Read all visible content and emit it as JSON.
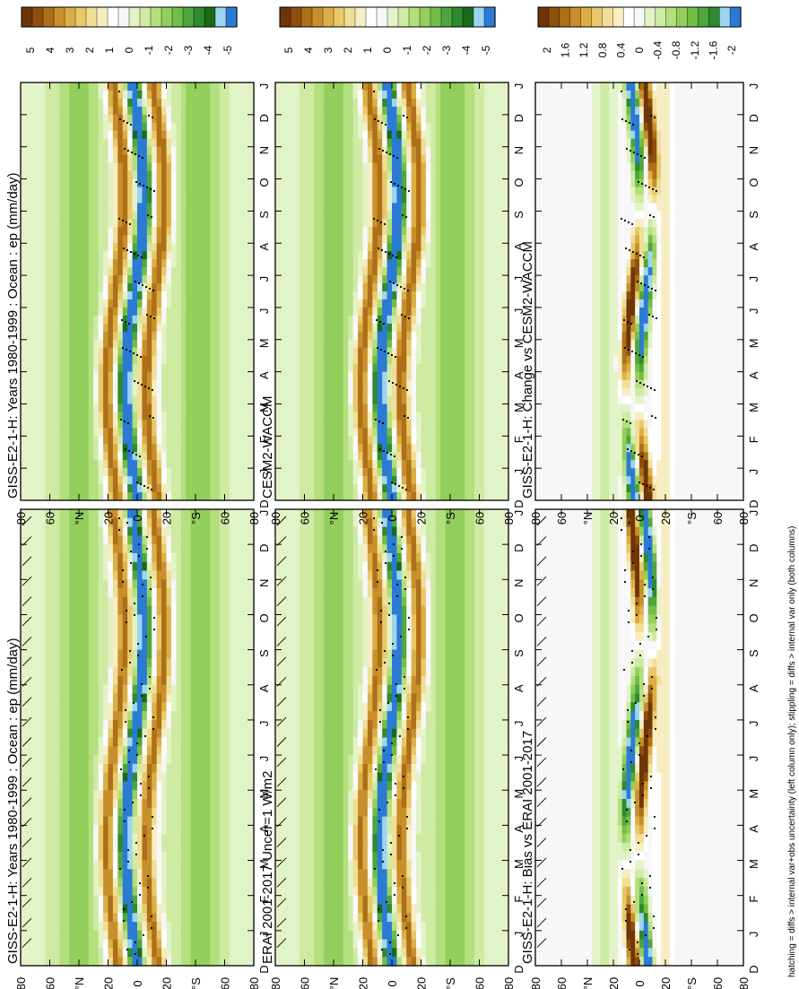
{
  "figure": {
    "footnote": "hatching = diffs > internal var+obs uncertainty (left column only); stippling = diffs > internal var only (both columns)",
    "colors": {
      "full": [
        "#2b7bd4",
        "#9fd4f0",
        "#1a6a1a",
        "#2e8a2e",
        "#4fa63c",
        "#72bd48",
        "#93cf5c",
        "#b4df7e",
        "#cfeaa3",
        "#e3f3c8",
        "#f7f7f7",
        "#ffffff",
        "#f7edc2",
        "#f0de96",
        "#e9c86a",
        "#dcae46",
        "#c8902c",
        "#ad6f18",
        "#8f4f0c",
        "#6e3608"
      ],
      "diff": [
        "#2b7bd4",
        "#9fd4f0",
        "#2e8a2e",
        "#4fa63c",
        "#72bd48",
        "#93cf5c",
        "#b4df7e",
        "#cfeaa3",
        "#e3f3c8",
        "#f7f7f7",
        "#ffffff",
        "#f7edc2",
        "#f0de96",
        "#e9c86a",
        "#dcae46",
        "#c8902c",
        "#ad6f18",
        "#8f4f0c",
        "#6e3608"
      ]
    }
  },
  "chart_data": [
    {
      "id": "p1",
      "type": "heatmap",
      "title": "GISS-E2-1-H: Years 1980-1999 : Ocean : ep (mm/day)",
      "x": [
        "D",
        "J",
        "F",
        "M",
        "A",
        "M",
        "J",
        "J",
        "A",
        "S",
        "O",
        "N",
        "D",
        "J"
      ],
      "y_ticks": [
        "80",
        "60",
        "°N",
        "20",
        "0",
        "20",
        "°S",
        "60",
        "80"
      ],
      "colorbar_labels": [
        "5",
        "4",
        "3",
        "2",
        "1",
        "0",
        "-1",
        "-2",
        "-3",
        "-4",
        "-5"
      ],
      "colorbar_range": [
        -5,
        5
      ],
      "fields": {
        "bias_dry_itcz": false
      },
      "hatching": true,
      "stippling": true
    },
    {
      "id": "p2",
      "type": "heatmap",
      "title": "GISS-E2-1-H: Years 1980-1999 : Ocean : ep (mm/day)",
      "x": [
        "D",
        "J",
        "F",
        "M",
        "A",
        "M",
        "J",
        "J",
        "A",
        "S",
        "O",
        "N",
        "D",
        "J"
      ],
      "y_ticks": [
        "80",
        "60",
        "°N",
        "20",
        "0",
        "20",
        "°S",
        "60",
        "80"
      ],
      "colorbar_labels": [
        "5",
        "4",
        "3",
        "2",
        "1",
        "0",
        "-1",
        "-2",
        "-3",
        "-4",
        "-5"
      ],
      "colorbar_range": [
        -5,
        5
      ],
      "hatching": false,
      "stippling": true
    },
    {
      "id": "p3",
      "type": "heatmap",
      "title": "ERAI 2001-2017 Uncer=1 W/m2",
      "x": [
        "D",
        "J",
        "F",
        "M",
        "A",
        "M",
        "J",
        "J",
        "A",
        "S",
        "O",
        "N",
        "D",
        "J"
      ],
      "y_ticks": [
        "80",
        "60",
        "°N",
        "20",
        "0",
        "20",
        "°S",
        "60",
        "80"
      ],
      "colorbar_labels": [
        "5",
        "4",
        "3",
        "2",
        "1",
        "0",
        "-1",
        "-2",
        "-3",
        "-4",
        "-5"
      ],
      "colorbar_range": [
        -5,
        5
      ],
      "hatching": true,
      "stippling": true
    },
    {
      "id": "p4",
      "type": "heatmap",
      "title": "CESM2-WACCM",
      "x": [
        "D",
        "J",
        "F",
        "M",
        "A",
        "M",
        "J",
        "J",
        "A",
        "S",
        "O",
        "N",
        "D",
        "J"
      ],
      "y_ticks": [
        "80",
        "60",
        "°N",
        "20",
        "0",
        "20",
        "°S",
        "60",
        "80"
      ],
      "colorbar_labels": [
        "5",
        "4",
        "3",
        "2",
        "1",
        "0",
        "-1",
        "-2",
        "-3",
        "-4",
        "-5"
      ],
      "colorbar_range": [
        -5,
        5
      ],
      "hatching": false,
      "stippling": true
    },
    {
      "id": "p5",
      "type": "heatmap",
      "title": "GISS-E2-1-H: Bias vs ERAI 2001-2017",
      "x": [
        "D",
        "J",
        "F",
        "M",
        "A",
        "M",
        "J",
        "J",
        "A",
        "S",
        "O",
        "N",
        "D",
        "J"
      ],
      "y_ticks": [
        "80",
        "60",
        "°N",
        "20",
        "0",
        "20",
        "°S",
        "60",
        "80"
      ],
      "colorbar_labels": [
        "2",
        "1.6",
        "1.2",
        "0.8",
        "0.4",
        "0",
        "-0.4",
        "-0.8",
        "-1.2",
        "-1.6",
        "-2"
      ],
      "colorbar_range": [
        -2,
        2
      ],
      "hatching": true,
      "stippling": true
    },
    {
      "id": "p6",
      "type": "heatmap",
      "title": "GISS-E2-1-H: Change vs CESM2-WACCM",
      "x": [
        "D",
        "J",
        "F",
        "M",
        "A",
        "M",
        "J",
        "J",
        "A",
        "S",
        "O",
        "N",
        "D",
        "J"
      ],
      "y_ticks": [
        "80",
        "60",
        "°N",
        "20",
        "0",
        "20",
        "°S",
        "60",
        "80"
      ],
      "colorbar_labels": [
        "2",
        "1.6",
        "1.2",
        "0.8",
        "0.4",
        "0",
        "-0.4",
        "-0.8",
        "-1.2",
        "-1.6",
        "-2"
      ],
      "colorbar_range": [
        -2,
        2
      ],
      "hatching": false,
      "stippling": true
    }
  ]
}
